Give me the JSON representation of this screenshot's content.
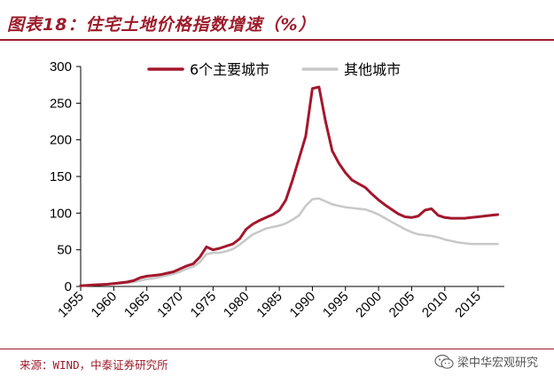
{
  "header": {
    "title": "图表18：住宅土地价格指数增速（%）"
  },
  "footer": {
    "source": "来源：WIND，中泰证券研究所",
    "watermark": "梁中华宏观研究"
  },
  "colors": {
    "accent": "#9c1c2b",
    "series_main": "#a3172d",
    "series_other": "#c8c8c8"
  },
  "chart_data": {
    "type": "line",
    "title": "住宅土地价格指数增速（%）",
    "xlabel": "",
    "ylabel": "",
    "xlim": [
      1955,
      2019
    ],
    "ylim": [
      0,
      300
    ],
    "yticks": [
      0,
      50,
      100,
      150,
      200,
      250,
      300
    ],
    "xticks": [
      1955,
      1960,
      1965,
      1970,
      1975,
      1980,
      1985,
      1990,
      1995,
      2000,
      2005,
      2010,
      2015
    ],
    "legend_position": "top-center",
    "grid": false,
    "series": [
      {
        "name": "6个主要城市",
        "color": "#a3172d",
        "x": [
          1955,
          1956,
          1957,
          1958,
          1959,
          1960,
          1961,
          1962,
          1963,
          1964,
          1965,
          1966,
          1967,
          1968,
          1969,
          1970,
          1971,
          1972,
          1973,
          1974,
          1975,
          1976,
          1977,
          1978,
          1979,
          1980,
          1981,
          1982,
          1983,
          1984,
          1985,
          1986,
          1987,
          1988,
          1989,
          1990,
          1991,
          1992,
          1993,
          1994,
          1995,
          1996,
          1997,
          1998,
          1999,
          2000,
          2001,
          2002,
          2003,
          2004,
          2005,
          2006,
          2007,
          2008,
          2009,
          2010,
          2011,
          2012,
          2013,
          2014,
          2015,
          2016,
          2017,
          2018
        ],
        "y": [
          1,
          1.5,
          2,
          2.5,
          3,
          4,
          5,
          6,
          8,
          12,
          14,
          15,
          16,
          18,
          20,
          24,
          28,
          31,
          40,
          54,
          50,
          52,
          55,
          58,
          65,
          78,
          85,
          90,
          94,
          98,
          104,
          118,
          145,
          175,
          205,
          270,
          272,
          225,
          185,
          168,
          155,
          145,
          140,
          135,
          126,
          118,
          111,
          105,
          99,
          95,
          94,
          96,
          104,
          106,
          97,
          94,
          93,
          93,
          93,
          94,
          95,
          96,
          97,
          98
        ]
      },
      {
        "name": "其他城市",
        "color": "#c8c8c8",
        "x": [
          1955,
          1956,
          1957,
          1958,
          1959,
          1960,
          1961,
          1962,
          1963,
          1964,
          1965,
          1966,
          1967,
          1968,
          1969,
          1970,
          1971,
          1972,
          1973,
          1974,
          1975,
          1976,
          1977,
          1978,
          1979,
          1980,
          1981,
          1982,
          1983,
          1984,
          1985,
          1986,
          1987,
          1988,
          1989,
          1990,
          1991,
          1992,
          1993,
          1994,
          1995,
          1996,
          1997,
          1998,
          1999,
          2000,
          2001,
          2002,
          2003,
          2004,
          2005,
          2006,
          2007,
          2008,
          2009,
          2010,
          2011,
          2012,
          2013,
          2014,
          2015,
          2016,
          2017,
          2018
        ],
        "y": [
          1,
          1.5,
          2,
          2.5,
          3,
          3.5,
          4,
          5,
          6,
          8,
          10,
          11,
          13,
          15,
          17,
          20,
          24,
          27,
          33,
          44,
          46,
          46,
          48,
          51,
          57,
          64,
          71,
          75,
          79,
          81,
          83,
          86,
          91,
          97,
          110,
          119,
          120,
          116,
          112,
          110,
          108,
          107,
          106,
          105,
          102,
          98,
          93,
          88,
          83,
          78,
          74,
          71,
          70,
          69,
          67,
          64,
          62,
          60,
          59,
          58,
          58,
          58,
          58,
          58
        ]
      }
    ]
  }
}
